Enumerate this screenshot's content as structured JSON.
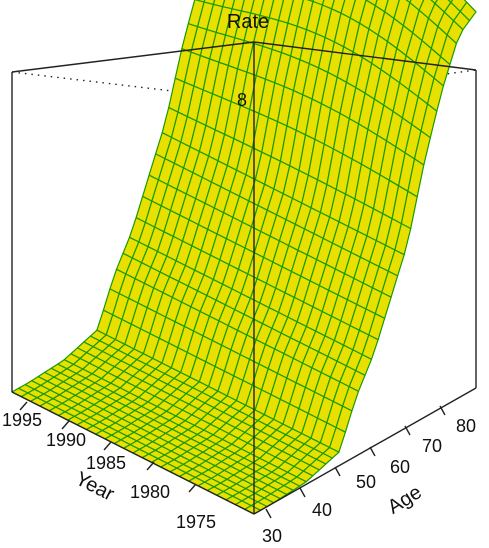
{
  "chart_data": {
    "type": "surface",
    "title": "Rate",
    "zlabel_partial": "8",
    "x_axis": {
      "label": "Year",
      "range": [
        1970,
        1997
      ],
      "ticks": [
        "1975",
        "1980",
        "1985",
        "1990",
        "1995"
      ]
    },
    "y_axis": {
      "label": "Age",
      "range": [
        25,
        90
      ],
      "ticks": [
        "30",
        "40",
        "50",
        "60",
        "70",
        "80"
      ]
    },
    "surface_color": "#e8e000",
    "mesh_color": "#1a9a00",
    "box_color": "#222222",
    "grid": false,
    "approx_profile_by_age": [
      {
        "age": 30,
        "rate": 0.0
      },
      {
        "age": 40,
        "rate": 0.05
      },
      {
        "age": 50,
        "rate": 0.3
      },
      {
        "age": 55,
        "rate": 1.3
      },
      {
        "age": 60,
        "rate": 2.0
      },
      {
        "age": 65,
        "rate": 3.0
      },
      {
        "age": 70,
        "rate": 4.0
      },
      {
        "age": 75,
        "rate": 5.6
      },
      {
        "age": 80,
        "rate": 6.9
      },
      {
        "age": 85,
        "rate": 7.9
      },
      {
        "age": 90,
        "rate": 8.2
      }
    ]
  }
}
